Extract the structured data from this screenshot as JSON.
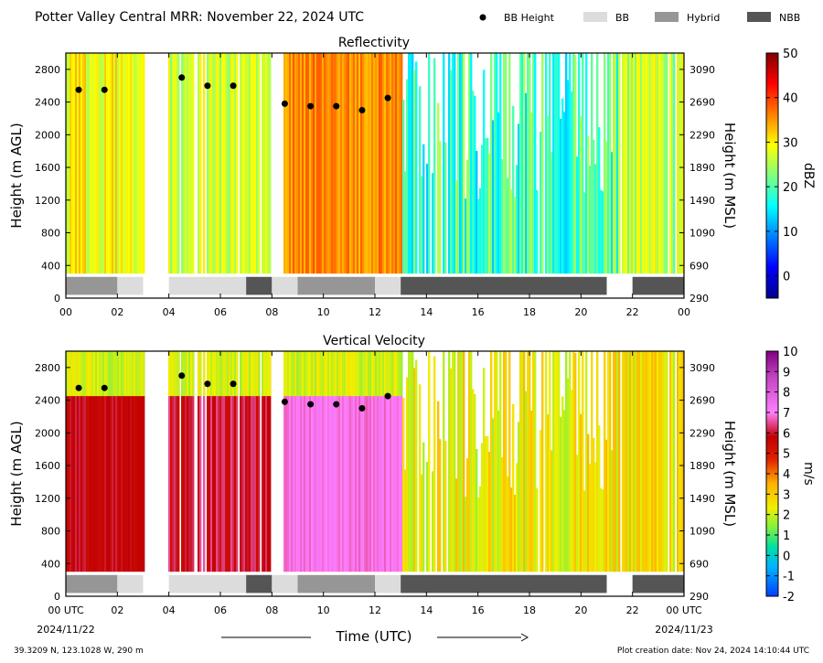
{
  "header": {
    "title": "Potter Valley Central MRR:  November 22, 2024 UTC",
    "legend": [
      {
        "label": "BB Height",
        "kind": "dot",
        "color": "#000000"
      },
      {
        "label": "BB",
        "kind": "box",
        "color": "#dcdcdc"
      },
      {
        "label": "Hybrid",
        "kind": "box",
        "color": "#969696"
      },
      {
        "label": "NBB",
        "kind": "box",
        "color": "#555555"
      }
    ]
  },
  "footer": {
    "location": "39.3209 N, 123.1028 W, 290 m",
    "created": "Plot creation date: Nov 24, 2024 14:10:44 UTC",
    "time_label": "Time (UTC)"
  },
  "colors": {
    "BB": "#dcdcdc",
    "Hybrid": "#969696",
    "NBB": "#555555"
  },
  "chart_data": [
    {
      "type": "heatmap",
      "title": "Reflectivity",
      "ylabel": "Height (m AGL)",
      "ylabel_right": "Height (m MSL)",
      "xlim": [
        0,
        24
      ],
      "ylim": [
        0,
        3000
      ],
      "x_ticks": [
        "00",
        "02",
        "04",
        "06",
        "08",
        "10",
        "12",
        "14",
        "16",
        "18",
        "20",
        "22",
        "00"
      ],
      "y_ticks_left": [
        "0",
        "400",
        "800",
        "1200",
        "1600",
        "2000",
        "2400",
        "2800"
      ],
      "y_ticks_right": [
        "290",
        "690",
        "1090",
        "1490",
        "1890",
        "2290",
        "2690",
        "3090"
      ],
      "colorbar": {
        "label": "dBZ",
        "min": -5,
        "max": 50,
        "ticks": [
          "0",
          "10",
          "20",
          "30",
          "40",
          "50"
        ]
      },
      "bb_height": {
        "x": [
          0.5,
          1.5,
          4.5,
          5.5,
          6.5,
          8.5,
          9.5,
          10.5,
          11.5,
          12.5
        ],
        "y": [
          2550,
          2550,
          2700,
          2600,
          2600,
          2380,
          2350,
          2350,
          2300,
          2450
        ]
      },
      "bb_type": [
        {
          "start": 0,
          "end": 2,
          "type": "Hybrid"
        },
        {
          "start": 2,
          "end": 3,
          "type": "BB"
        },
        {
          "start": 4,
          "end": 7,
          "type": "BB"
        },
        {
          "start": 7,
          "end": 8,
          "type": "NBB"
        },
        {
          "start": 8,
          "end": 9,
          "type": "BB"
        },
        {
          "start": 9,
          "end": 12,
          "type": "Hybrid"
        },
        {
          "start": 12,
          "end": 13,
          "type": "BB"
        },
        {
          "start": 13,
          "end": 21,
          "type": "NBB"
        },
        {
          "start": 22,
          "end": 24,
          "type": "NBB"
        }
      ]
    },
    {
      "type": "heatmap",
      "title": "Vertical Velocity",
      "ylabel": "Height (m AGL)",
      "ylabel_right": "Height (m MSL)",
      "xlabel": "Time (UTC)",
      "xlim": [
        0,
        24
      ],
      "ylim": [
        0,
        3000
      ],
      "x_ticks": [
        "00 UTC",
        "02",
        "04",
        "06",
        "08",
        "10",
        "12",
        "14",
        "16",
        "18",
        "20",
        "22",
        "00 UTC"
      ],
      "x_date_start": "2024/11/22",
      "x_date_end": "2024/11/23",
      "y_ticks_left": [
        "0",
        "400",
        "800",
        "1200",
        "1600",
        "2000",
        "2400",
        "2800"
      ],
      "y_ticks_right": [
        "290",
        "690",
        "1090",
        "1490",
        "1890",
        "2290",
        "2690",
        "3090"
      ],
      "colorbar": {
        "label": "m/s",
        "min": -2,
        "max": 10,
        "ticks": [
          "-2",
          "-1",
          "0",
          "1",
          "2",
          "3",
          "4",
          "5",
          "6",
          "7",
          "8",
          "9",
          "10"
        ]
      },
      "bb_height": {
        "x": [
          0.5,
          1.5,
          4.5,
          5.5,
          6.5,
          8.5,
          9.5,
          10.5,
          11.5,
          12.5
        ],
        "y": [
          2550,
          2550,
          2700,
          2600,
          2600,
          2380,
          2350,
          2350,
          2300,
          2450
        ]
      },
      "bb_type": [
        {
          "start": 0,
          "end": 2,
          "type": "Hybrid"
        },
        {
          "start": 2,
          "end": 3,
          "type": "BB"
        },
        {
          "start": 4,
          "end": 7,
          "type": "BB"
        },
        {
          "start": 7,
          "end": 8,
          "type": "NBB"
        },
        {
          "start": 8,
          "end": 9,
          "type": "BB"
        },
        {
          "start": 9,
          "end": 12,
          "type": "Hybrid"
        },
        {
          "start": 12,
          "end": 13,
          "type": "BB"
        },
        {
          "start": 13,
          "end": 21,
          "type": "NBB"
        },
        {
          "start": 22,
          "end": 24,
          "type": "NBB"
        }
      ]
    }
  ]
}
